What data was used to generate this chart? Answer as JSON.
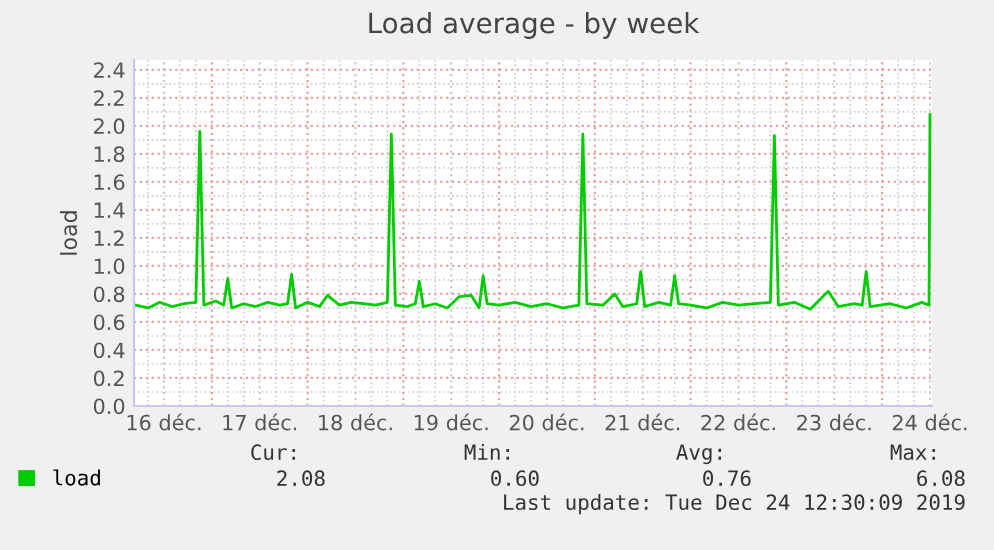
{
  "chart_data": {
    "type": "line",
    "title": "Load average - by week",
    "ylabel": "load",
    "x": [
      "2019-12-16T05:00",
      "2019-12-16T08:00",
      "2019-12-16T11:00",
      "2019-12-16T14:00",
      "2019-12-16T17:00",
      "2019-12-16T20:00",
      "2019-12-16T21:00",
      "2019-12-16T22:00",
      "2019-12-17T01:00",
      "2019-12-17T03:00",
      "2019-12-17T04:00",
      "2019-12-17T05:00",
      "2019-12-17T08:00",
      "2019-12-17T11:00",
      "2019-12-17T14:00",
      "2019-12-17T17:00",
      "2019-12-17T19:00",
      "2019-12-17T20:00",
      "2019-12-17T21:00",
      "2019-12-18T00:00",
      "2019-12-18T03:00",
      "2019-12-18T05:00",
      "2019-12-18T08:00",
      "2019-12-18T11:00",
      "2019-12-18T14:00",
      "2019-12-18T17:00",
      "2019-12-18T20:00",
      "2019-12-18T21:00",
      "2019-12-18T22:00",
      "2019-12-19T01:00",
      "2019-12-19T03:00",
      "2019-12-19T04:00",
      "2019-12-19T05:00",
      "2019-12-19T08:00",
      "2019-12-19T11:00",
      "2019-12-19T14:00",
      "2019-12-19T17:00",
      "2019-12-19T19:00",
      "2019-12-19T20:00",
      "2019-12-19T21:00",
      "2019-12-20T00:00",
      "2019-12-20T04:00",
      "2019-12-20T08:00",
      "2019-12-20T12:00",
      "2019-12-20T16:00",
      "2019-12-20T20:00",
      "2019-12-20T21:00",
      "2019-12-20T22:00",
      "2019-12-21T02:00",
      "2019-12-21T05:00",
      "2019-12-21T07:00",
      "2019-12-21T10:30",
      "2019-12-21T11:30",
      "2019-12-21T12:30",
      "2019-12-21T16:00",
      "2019-12-21T19:00",
      "2019-12-21T20:00",
      "2019-12-21T21:00",
      "2019-12-22T00:00",
      "2019-12-22T04:00",
      "2019-12-22T08:00",
      "2019-12-22T12:00",
      "2019-12-22T16:00",
      "2019-12-22T20:00",
      "2019-12-22T21:00",
      "2019-12-22T22:00",
      "2019-12-23T02:00",
      "2019-12-23T06:00",
      "2019-12-23T10:30",
      "2019-12-23T13:00",
      "2019-12-23T17:00",
      "2019-12-23T19:00",
      "2019-12-23T20:00",
      "2019-12-23T21:00",
      "2019-12-24T02:00",
      "2019-12-24T06:00",
      "2019-12-24T10:00",
      "2019-12-24T11:45",
      "2019-12-24T12:00"
    ],
    "series": [
      {
        "name": "load",
        "color": "#00cc00",
        "values": [
          0.72,
          0.7,
          0.74,
          0.71,
          0.73,
          0.74,
          1.96,
          0.72,
          0.75,
          0.72,
          0.91,
          0.7,
          0.73,
          0.71,
          0.74,
          0.72,
          0.73,
          0.94,
          0.7,
          0.74,
          0.71,
          0.79,
          0.72,
          0.74,
          0.73,
          0.72,
          0.74,
          1.94,
          0.72,
          0.71,
          0.73,
          0.89,
          0.71,
          0.73,
          0.7,
          0.78,
          0.79,
          0.7,
          0.93,
          0.73,
          0.72,
          0.74,
          0.71,
          0.73,
          0.7,
          0.72,
          1.94,
          0.73,
          0.72,
          0.8,
          0.71,
          0.73,
          0.96,
          0.71,
          0.74,
          0.72,
          0.93,
          0.73,
          0.72,
          0.7,
          0.74,
          0.72,
          0.73,
          0.74,
          1.93,
          0.72,
          0.74,
          0.69,
          0.82,
          0.71,
          0.73,
          0.72,
          0.96,
          0.71,
          0.73,
          0.7,
          0.74,
          0.72,
          2.08
        ]
      }
    ],
    "xlim": [
      "2019-12-16T04:30",
      "2019-12-24T12:30"
    ],
    "xticks": [
      {
        "value": "2019-12-16T12:00",
        "label": "16 déc."
      },
      {
        "value": "2019-12-17T00:00",
        "label": null
      },
      {
        "value": "2019-12-17T12:00",
        "label": "17 déc."
      },
      {
        "value": "2019-12-18T00:00",
        "label": null
      },
      {
        "value": "2019-12-18T12:00",
        "label": "18 déc."
      },
      {
        "value": "2019-12-19T00:00",
        "label": null
      },
      {
        "value": "2019-12-19T12:00",
        "label": "19 déc."
      },
      {
        "value": "2019-12-20T00:00",
        "label": null
      },
      {
        "value": "2019-12-20T12:00",
        "label": "20 déc."
      },
      {
        "value": "2019-12-21T00:00",
        "label": null
      },
      {
        "value": "2019-12-21T12:00",
        "label": "21 déc."
      },
      {
        "value": "2019-12-22T00:00",
        "label": null
      },
      {
        "value": "2019-12-22T12:00",
        "label": "22 déc."
      },
      {
        "value": "2019-12-23T00:00",
        "label": null
      },
      {
        "value": "2019-12-23T12:00",
        "label": "23 déc."
      },
      {
        "value": "2019-12-24T00:00",
        "label": null
      },
      {
        "value": "2019-12-24T12:00",
        "label": "24 déc."
      }
    ],
    "ylim": [
      0,
      2.47
    ],
    "yticks": [
      {
        "value": 0,
        "label": "0.0"
      },
      {
        "value": 0.2,
        "label": "0.2"
      },
      {
        "value": 0.4,
        "label": "0.4"
      },
      {
        "value": 0.6,
        "label": "0.6"
      },
      {
        "value": 0.8,
        "label": "0.8"
      },
      {
        "value": 1.0,
        "label": "1.0"
      },
      {
        "value": 1.2,
        "label": "1.2"
      },
      {
        "value": 1.4,
        "label": "1.4"
      },
      {
        "value": 1.6,
        "label": "1.6"
      },
      {
        "value": 1.8,
        "label": "1.8"
      },
      {
        "value": 2.0,
        "label": "2.0"
      },
      {
        "value": 2.2,
        "label": "2.2"
      },
      {
        "value": 2.4,
        "label": "2.4"
      }
    ],
    "grid": true,
    "legend": "bottom",
    "line_style": "solid",
    "marker": "none",
    "annotations": [
      "Cur:",
      "Min:",
      "Avg:",
      "Max:",
      "2.08",
      "0.60",
      "0.76",
      "6.08",
      "Last update: Tue Dec 24 12:30:09 2019"
    ]
  }
}
